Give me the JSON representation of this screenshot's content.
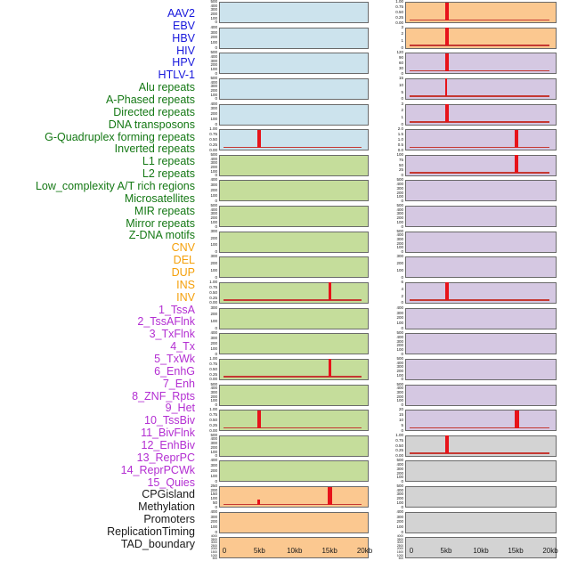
{
  "chart_data": {
    "type": "line",
    "title": "",
    "xlabel": "",
    "x_range_kb": [
      0,
      20
    ],
    "x_ticks": [
      {
        "label": "0",
        "kb": 0
      },
      {
        "label": "5kb",
        "kb": 5
      },
      {
        "label": "10kb",
        "kb": 10
      },
      {
        "label": "15kb",
        "kb": 15
      },
      {
        "label": "20kb",
        "kb": 20
      }
    ],
    "group_colors": {
      "virus": "#1717DC",
      "repeat": "#147814",
      "sv": "#F5A00A",
      "chromatin": "#B32ED2",
      "other": "#1A1A1A"
    },
    "panel_fills": {
      "blue": "#CCE3ED",
      "green": "#C5DD9B",
      "orange": "#FBC890",
      "purple": "#D5C8E2",
      "gray": "#D3D3D3"
    },
    "signal_colors": {
      "spike": "#E7131A",
      "baseline": "#C53832"
    },
    "label_column": [
      {
        "text": "AAV2",
        "group": "virus"
      },
      {
        "text": "EBV",
        "group": "virus"
      },
      {
        "text": "HBV",
        "group": "virus"
      },
      {
        "text": "HIV",
        "group": "virus"
      },
      {
        "text": "HPV",
        "group": "virus"
      },
      {
        "text": "HTLV-1",
        "group": "virus"
      },
      {
        "text": "Alu repeats",
        "group": "repeat"
      },
      {
        "text": "A-Phased repeats",
        "group": "repeat"
      },
      {
        "text": "Directed repeats",
        "group": "repeat"
      },
      {
        "text": "DNA transposons",
        "group": "repeat"
      },
      {
        "text": "G-Quadruplex forming repeats",
        "group": "repeat"
      },
      {
        "text": "Inverted repeats",
        "group": "repeat"
      },
      {
        "text": "L1 repeats",
        "group": "repeat"
      },
      {
        "text": "L2 repeats",
        "group": "repeat"
      },
      {
        "text": "Low_complexity A/T rich regions",
        "group": "repeat"
      },
      {
        "text": "Microsatellites",
        "group": "repeat"
      },
      {
        "text": "MIR repeats",
        "group": "repeat"
      },
      {
        "text": "Mirror repeats",
        "group": "repeat"
      },
      {
        "text": "Z-DNA motifs",
        "group": "repeat"
      },
      {
        "text": "CNV",
        "group": "sv"
      },
      {
        "text": "DEL",
        "group": "sv"
      },
      {
        "text": "DUP",
        "group": "sv"
      },
      {
        "text": "INS",
        "group": "sv"
      },
      {
        "text": "INV",
        "group": "sv"
      },
      {
        "text": "1_TssA",
        "group": "chromatin"
      },
      {
        "text": "2_TssAFlnk",
        "group": "chromatin"
      },
      {
        "text": "3_TxFlnk",
        "group": "chromatin"
      },
      {
        "text": "4_Tx",
        "group": "chromatin"
      },
      {
        "text": "5_TxWk",
        "group": "chromatin"
      },
      {
        "text": "6_EnhG",
        "group": "chromatin"
      },
      {
        "text": "7_Enh",
        "group": "chromatin"
      },
      {
        "text": "8_ZNF_Rpts",
        "group": "chromatin"
      },
      {
        "text": "9_Het",
        "group": "chromatin"
      },
      {
        "text": "10_TssBiv",
        "group": "chromatin"
      },
      {
        "text": "11_BivFlnk",
        "group": "chromatin"
      },
      {
        "text": "12_EnhBiv",
        "group": "chromatin"
      },
      {
        "text": "13_ReprPC",
        "group": "chromatin"
      },
      {
        "text": "14_ReprPCWk",
        "group": "chromatin"
      },
      {
        "text": "15_Quies",
        "group": "chromatin"
      },
      {
        "text": "CPGisland",
        "group": "other"
      },
      {
        "text": "Methylation",
        "group": "other"
      },
      {
        "text": "Promoters",
        "group": "other"
      },
      {
        "text": "ReplicationTiming",
        "group": "other"
      },
      {
        "text": "TAD_boundary",
        "group": "other"
      }
    ],
    "columns": [
      {
        "side": "left",
        "panels": [
          {
            "feature": "AAV2",
            "fill": "blue",
            "yticks": [
              "500",
              "400",
              "300",
              "200",
              "100",
              "0"
            ],
            "baseline": false,
            "spikes": []
          },
          {
            "feature": "EBV",
            "fill": "blue",
            "yticks": [
              "400",
              "300",
              "200",
              "100",
              "0"
            ],
            "baseline": false,
            "spikes": []
          },
          {
            "feature": "HBV",
            "fill": "blue",
            "yticks": [
              "500",
              "400",
              "300",
              "200",
              "100",
              "0"
            ],
            "baseline": false,
            "spikes": []
          },
          {
            "feature": "HIV",
            "fill": "blue",
            "yticks": [
              "500",
              "400",
              "300",
              "200",
              "100",
              "0"
            ],
            "baseline": false,
            "spikes": []
          },
          {
            "feature": "HPV",
            "fill": "blue",
            "yticks": [
              "400",
              "300",
              "200",
              "100",
              "0"
            ],
            "baseline": false,
            "spikes": []
          },
          {
            "feature": "HTLV-1",
            "fill": "blue",
            "yticks": [
              "1.00",
              "0.75",
              "0.50",
              "0.25",
              "0.00"
            ],
            "baseline": true,
            "spikes": [
              {
                "kb": 4.8,
                "h": 1,
                "w": 3.5
              }
            ]
          },
          {
            "feature": "Alu repeats",
            "fill": "green",
            "yticks": [
              "500",
              "400",
              "300",
              "200",
              "100",
              "0"
            ],
            "baseline": false,
            "spikes": []
          },
          {
            "feature": "A-Phased repeats",
            "fill": "green",
            "yticks": [
              "400",
              "300",
              "200",
              "100",
              "0"
            ],
            "baseline": false,
            "spikes": []
          },
          {
            "feature": "Directed repeats",
            "fill": "green",
            "yticks": [
              "500",
              "400",
              "300",
              "200",
              "100",
              "0"
            ],
            "baseline": false,
            "spikes": []
          },
          {
            "feature": "DNA transposons",
            "fill": "green",
            "yticks": [
              "300",
              "200",
              "100",
              "0"
            ],
            "baseline": false,
            "spikes": []
          },
          {
            "feature": "G-Quadruplex forming repeats",
            "fill": "green",
            "yticks": [
              "300",
              "200",
              "100",
              "0"
            ],
            "baseline": false,
            "spikes": []
          },
          {
            "feature": "Inverted repeats",
            "fill": "green",
            "yticks": [
              "1.00",
              "0.75",
              "0.50",
              "0.25",
              "0.00"
            ],
            "baseline": true,
            "spikes": [
              {
                "kb": 14.9,
                "h": 1,
                "w": 3.5
              }
            ]
          },
          {
            "feature": "L1 repeats",
            "fill": "green",
            "yticks": [
              "300",
              "200",
              "100",
              "0"
            ],
            "baseline": false,
            "spikes": []
          },
          {
            "feature": "L2 repeats",
            "fill": "green",
            "yticks": [
              "400",
              "300",
              "200",
              "100",
              "0"
            ],
            "baseline": false,
            "spikes": []
          },
          {
            "feature": "Low_complexity A/T rich regions",
            "fill": "green",
            "yticks": [
              "1.00",
              "0.75",
              "0.50",
              "0.25",
              "0.00"
            ],
            "baseline": true,
            "spikes": [
              {
                "kb": 14.9,
                "h": 1,
                "w": 3.5
              }
            ]
          },
          {
            "feature": "Microsatellites",
            "fill": "green",
            "yticks": [
              "500",
              "400",
              "300",
              "200",
              "100",
              "0"
            ],
            "baseline": false,
            "spikes": []
          },
          {
            "feature": "MIR repeats",
            "fill": "green",
            "yticks": [
              "1.00",
              "0.75",
              "0.50",
              "0.25",
              "0.00"
            ],
            "baseline": true,
            "spikes": [
              {
                "kb": 4.8,
                "h": 1,
                "w": 3.5
              }
            ]
          },
          {
            "feature": "Mirror repeats",
            "fill": "green",
            "yticks": [
              "500",
              "400",
              "300",
              "200",
              "100",
              "0"
            ],
            "baseline": false,
            "spikes": []
          },
          {
            "feature": "Z-DNA motifs",
            "fill": "green",
            "yticks": [
              "400",
              "300",
              "200",
              "100",
              "0"
            ],
            "baseline": false,
            "spikes": []
          },
          {
            "feature": "CNV",
            "fill": "orange",
            "yticks": [
              "250",
              "200",
              "150",
              "100",
              "50",
              "0"
            ],
            "baseline": true,
            "spikes": [
              {
                "kb": 4.8,
                "h": 0.27,
                "w": 3
              },
              {
                "kb": 14.9,
                "h": 1,
                "w": 4.5
              }
            ]
          },
          {
            "feature": "DEL",
            "fill": "orange",
            "yticks": [
              "400",
              "300",
              "200",
              "100",
              "0"
            ],
            "baseline": false,
            "spikes": []
          },
          {
            "feature": "DUP",
            "fill": "orange",
            "yticks": [
              "4000",
              "3500",
              "3000",
              "2500",
              "2000",
              "1500",
              "1000",
              "500"
            ],
            "baseline": false,
            "spikes": []
          }
        ]
      },
      {
        "side": "right",
        "panels": [
          {
            "feature": "INS",
            "fill": "orange",
            "yticks": [
              "1.00",
              "0.75",
              "0.50",
              "0.25",
              "0.00"
            ],
            "baseline": true,
            "spikes": [
              {
                "kb": 5,
                "h": 1,
                "w": 4.5
              }
            ]
          },
          {
            "feature": "INV",
            "fill": "orange",
            "yticks": [
              "3",
              "2",
              "1",
              "0"
            ],
            "baseline": true,
            "spikes": [
              {
                "kb": 5,
                "h": 1,
                "w": 4.5
              }
            ]
          },
          {
            "feature": "1_TssA",
            "fill": "purple",
            "yticks": [
              "120",
              "90",
              "60",
              "30",
              "0"
            ],
            "baseline": true,
            "spikes": [
              {
                "kb": 5,
                "h": 1,
                "w": 4
              }
            ]
          },
          {
            "feature": "2_TssAFlnk",
            "fill": "purple",
            "yticks": [
              "15",
              "10",
              "5",
              "0"
            ],
            "baseline": true,
            "spikes": [
              {
                "kb": 4.9,
                "h": 1,
                "w": 2.5
              }
            ]
          },
          {
            "feature": "3_TxFlnk",
            "fill": "purple",
            "yticks": [
              "3",
              "2",
              "1",
              "0"
            ],
            "baseline": true,
            "spikes": [
              {
                "kb": 5,
                "h": 1,
                "w": 4
              }
            ]
          },
          {
            "feature": "4_Tx",
            "fill": "purple",
            "yticks": [
              "2.0",
              "1.5",
              "1.0",
              "0.5",
              "0.0"
            ],
            "baseline": true,
            "spikes": [
              {
                "kb": 15,
                "h": 1,
                "w": 4.5
              }
            ]
          },
          {
            "feature": "5_TxWk",
            "fill": "purple",
            "yticks": [
              "100",
              "75",
              "50",
              "25",
              "0"
            ],
            "baseline": true,
            "spikes": [
              {
                "kb": 15,
                "h": 1,
                "w": 4.5
              }
            ]
          },
          {
            "feature": "6_EnhG",
            "fill": "purple",
            "yticks": [
              "500",
              "400",
              "300",
              "200",
              "100",
              "0"
            ],
            "baseline": false,
            "spikes": []
          },
          {
            "feature": "7_Enh",
            "fill": "purple",
            "yticks": [
              "500",
              "400",
              "300",
              "200",
              "100",
              "0"
            ],
            "baseline": false,
            "spikes": []
          },
          {
            "feature": "8_ZNF_Rpts",
            "fill": "purple",
            "yticks": [
              "500",
              "400",
              "300",
              "200",
              "100",
              "0"
            ],
            "baseline": false,
            "spikes": []
          },
          {
            "feature": "9_Het",
            "fill": "purple",
            "yticks": [
              "300",
              "200",
              "100",
              "0"
            ],
            "baseline": false,
            "spikes": []
          },
          {
            "feature": "10_TssBiv",
            "fill": "purple",
            "yticks": [
              "6",
              "4",
              "2",
              "0"
            ],
            "baseline": true,
            "spikes": [
              {
                "kb": 5,
                "h": 1,
                "w": 3.5
              }
            ]
          },
          {
            "feature": "11_BivFlnk",
            "fill": "purple",
            "yticks": [
              "400",
              "300",
              "200",
              "100",
              "0"
            ],
            "baseline": false,
            "spikes": []
          },
          {
            "feature": "12_EnhBiv",
            "fill": "purple",
            "yticks": [
              "500",
              "400",
              "300",
              "200",
              "100",
              "0"
            ],
            "baseline": false,
            "spikes": []
          },
          {
            "feature": "13_ReprPC",
            "fill": "purple",
            "yticks": [
              "500",
              "400",
              "300",
              "200",
              "100",
              "0"
            ],
            "baseline": false,
            "spikes": []
          },
          {
            "feature": "14_ReprPCWk",
            "fill": "purple",
            "yticks": [
              "500",
              "400",
              "300",
              "200",
              "100",
              "0"
            ],
            "baseline": false,
            "spikes": []
          },
          {
            "feature": "15_Quies",
            "fill": "purple",
            "yticks": [
              "20",
              "15",
              "10",
              "5",
              "0"
            ],
            "baseline": true,
            "spikes": [
              {
                "kb": 15,
                "h": 1,
                "w": 5
              }
            ]
          },
          {
            "feature": "CPGisland",
            "fill": "gray",
            "yticks": [
              "1.00",
              "0.75",
              "0.50",
              "0.25",
              "0.00"
            ],
            "baseline": true,
            "spikes": [
              {
                "kb": 5,
                "h": 1,
                "w": 3.5
              }
            ]
          },
          {
            "feature": "Methylation",
            "fill": "gray",
            "yticks": [
              "500",
              "400",
              "300",
              "200",
              "100",
              "0"
            ],
            "baseline": false,
            "spikes": []
          },
          {
            "feature": "Promoters",
            "fill": "gray",
            "yticks": [
              "500",
              "400",
              "300",
              "200",
              "100",
              "0"
            ],
            "baseline": false,
            "spikes": []
          },
          {
            "feature": "ReplicationTiming",
            "fill": "gray",
            "yticks": [
              "400",
              "300",
              "200",
              "100",
              "0"
            ],
            "baseline": false,
            "spikes": []
          },
          {
            "feature": "TAD_boundary",
            "fill": "gray",
            "yticks": [
              "4000",
              "3500",
              "3000",
              "2500",
              "2000",
              "1500",
              "1000",
              "500"
            ],
            "baseline": false,
            "spikes": []
          }
        ]
      }
    ]
  }
}
